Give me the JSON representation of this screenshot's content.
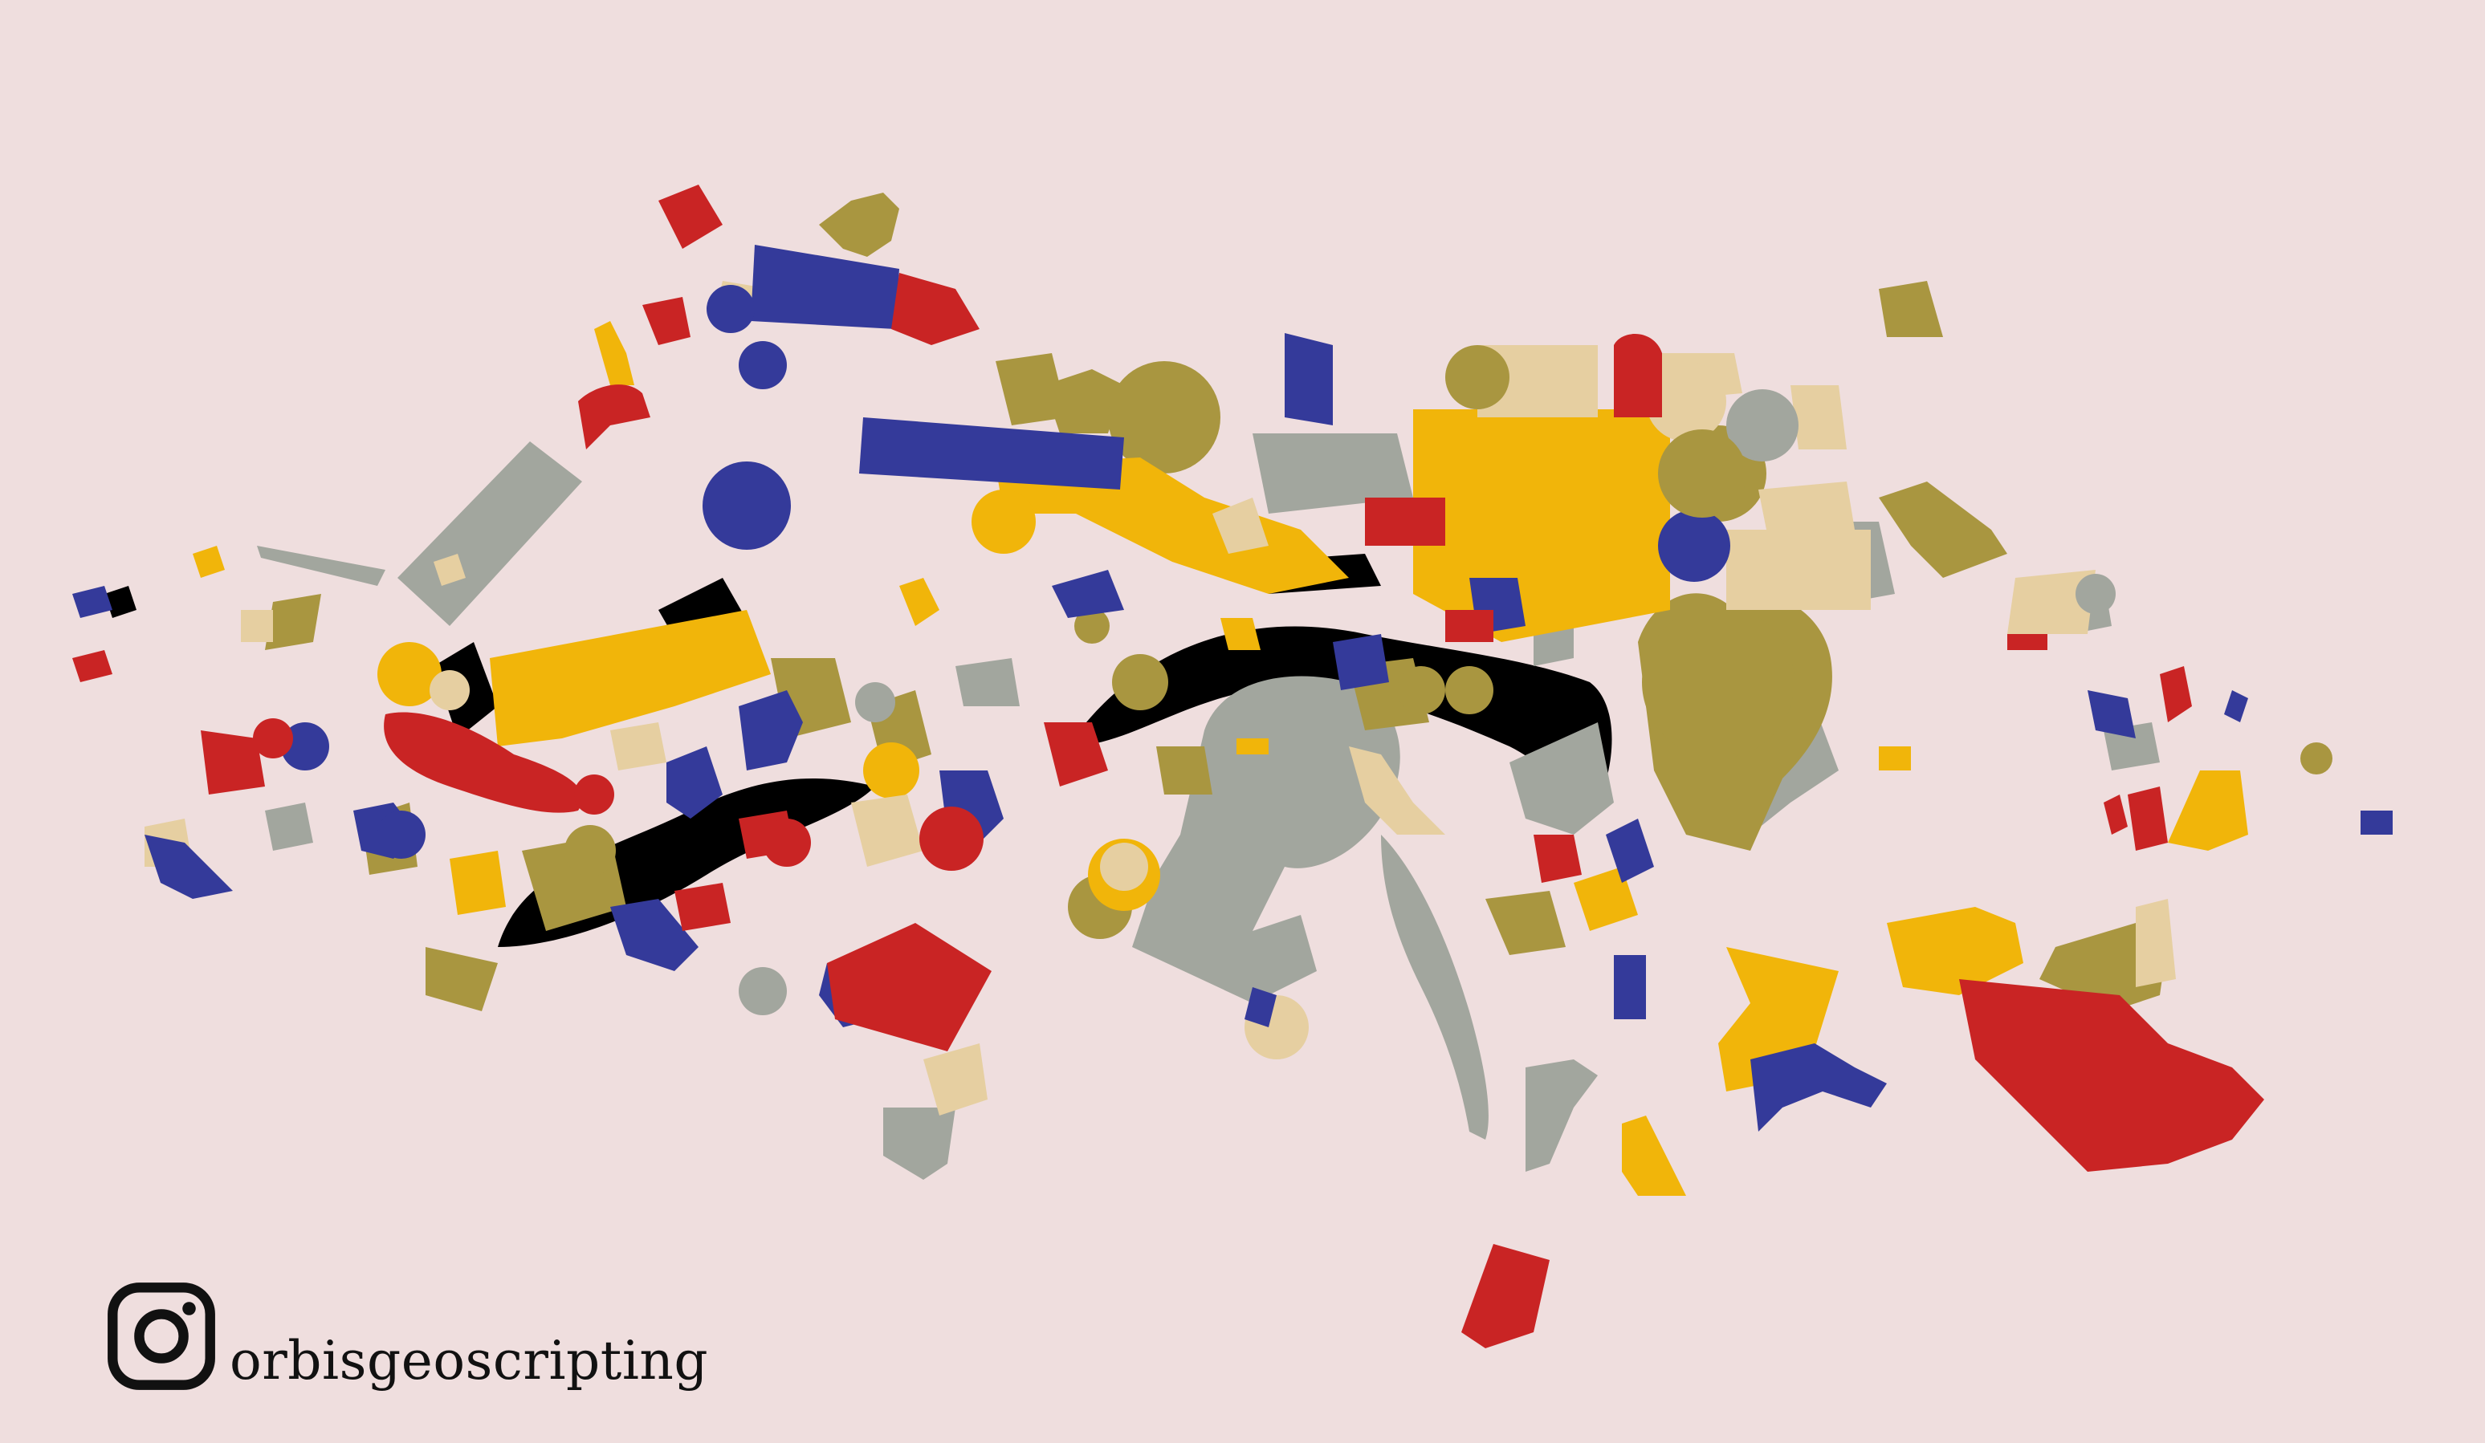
{
  "palette": {
    "background": "#efdede",
    "blue": "#343a9a",
    "red": "#c92424",
    "yellow": "#f1b50a",
    "olive": "#a99640",
    "grey": "#a2a69e",
    "beige": "#e6cfa1",
    "black": "#000000"
  },
  "brand": {
    "icon": "instagram-icon",
    "handle": "orbisgeoscripting"
  }
}
